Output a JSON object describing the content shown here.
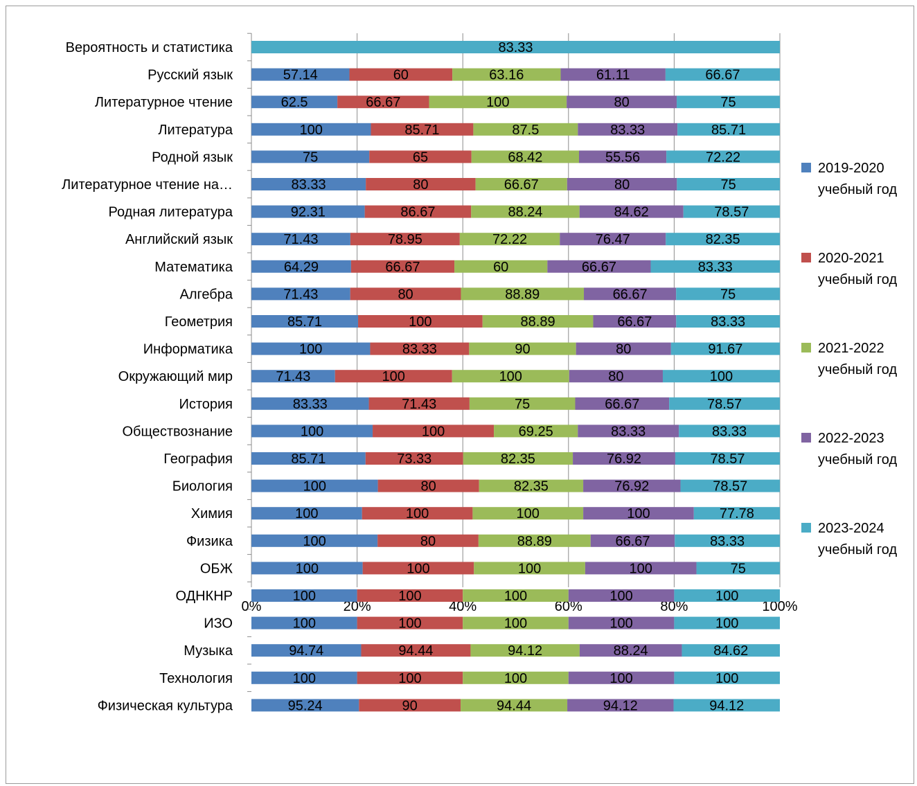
{
  "chart_data": {
    "type": "bar",
    "orientation": "horizontal",
    "stacking": "percent",
    "title": "",
    "xlabel": "",
    "ylabel": "",
    "xlim": [
      0,
      100
    ],
    "x_ticks": [
      "0%",
      "20%",
      "40%",
      "60%",
      "80%",
      "100%"
    ],
    "legend_position": "right",
    "grid": "vertical",
    "categories": [
      "Вероятность и статистика",
      "Русский язык",
      "Литературное чтение ",
      "Литература",
      "Родной язык",
      "Литературное чтение на…",
      "Родная литература",
      "Английский язык",
      "Математика",
      "Алгебра",
      "Геометрия",
      "Информатика",
      "Окружающий мир",
      "История",
      "Обществознание",
      "География",
      "Биология",
      "Химия",
      "Физика",
      "ОБЖ",
      "ОДНКНР",
      "ИЗО",
      "Музыка ",
      "Технология",
      "Физическая культура"
    ],
    "series": [
      {
        "name": "2019-2020 учебный год",
        "name_lines": [
          "2019-2020",
          "учебный год"
        ],
        "color": "#4f81bd",
        "values": [
          null,
          57.14,
          62.5,
          100,
          75,
          83.33,
          92.31,
          71.43,
          64.29,
          71.43,
          85.71,
          100,
          71.43,
          83.33,
          100,
          85.71,
          100,
          100,
          100,
          100,
          100,
          100,
          94.74,
          100,
          95.24
        ]
      },
      {
        "name": "2020-2021 учебный год",
        "name_lines": [
          "2020-2021",
          "учебный год"
        ],
        "color": "#c0504d",
        "values": [
          null,
          60,
          66.67,
          85.71,
          65,
          80,
          86.67,
          78.95,
          66.67,
          80,
          100,
          83.33,
          100,
          71.43,
          100,
          73.33,
          80,
          100,
          80,
          100,
          100,
          100,
          94.44,
          100,
          90
        ]
      },
      {
        "name": "2021-2022 учебный год",
        "name_lines": [
          "2021-2022",
          "учебный год"
        ],
        "color": "#9bbb59",
        "values": [
          null,
          63.16,
          100,
          87.5,
          68.42,
          66.67,
          88.24,
          72.22,
          60,
          88.89,
          88.89,
          90,
          100,
          75,
          69.25,
          82.35,
          82.35,
          100,
          88.89,
          100,
          100,
          100,
          94.12,
          100,
          94.44
        ]
      },
      {
        "name": "2022-2023 учебный год",
        "name_lines": [
          "2022-2023",
          "учебный год"
        ],
        "color": "#8064a2",
        "values": [
          null,
          61.11,
          80,
          83.33,
          55.56,
          80,
          84.62,
          76.47,
          66.67,
          66.67,
          66.67,
          80,
          80,
          66.67,
          83.33,
          76.92,
          76.92,
          100,
          66.67,
          100,
          100,
          100,
          88.24,
          100,
          94.12
        ]
      },
      {
        "name": "2023-2024 учебный год",
        "name_lines": [
          "2023-2024",
          "учебный год"
        ],
        "color": "#4bacc6",
        "values": [
          83.33,
          66.67,
          75,
          85.71,
          72.22,
          75,
          78.57,
          82.35,
          83.33,
          75,
          83.33,
          91.67,
          100,
          78.57,
          83.33,
          78.57,
          78.57,
          77.78,
          83.33,
          75,
          100,
          100,
          84.62,
          100,
          94.12
        ]
      }
    ]
  }
}
